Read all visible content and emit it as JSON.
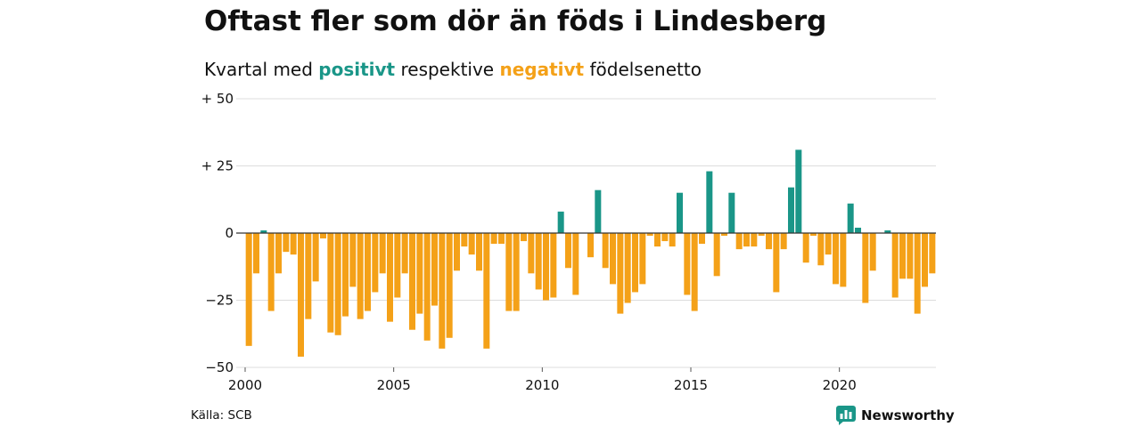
{
  "title": "Oftast fler som dör än föds i Lindesberg",
  "subtitle": {
    "prefix": "Kvartal med ",
    "positive_word": "positivt",
    "middle": " respektive ",
    "negative_word": "negativt",
    "suffix": " födelsenetto"
  },
  "colors": {
    "positive": "#1a9688",
    "negative": "#f4a118",
    "grid": "#dcdcdc",
    "zero": "#333333"
  },
  "source": "Källa: SCB",
  "brand": {
    "name": "Newsworthy",
    "icon": "newsworthy-logo-icon"
  },
  "chart_data": {
    "type": "bar",
    "title": "Oftast fler som dör än föds i Lindesberg",
    "ylim": [
      -50,
      50
    ],
    "yticks": [
      {
        "value": 50,
        "label": "+ 50"
      },
      {
        "value": 25,
        "label": "+ 25"
      },
      {
        "value": 0,
        "label": "0"
      },
      {
        "value": -25,
        "label": "−25"
      },
      {
        "value": -50,
        "label": "−50"
      }
    ],
    "xlim": [
      2000,
      2023.25
    ],
    "xticks": [
      2000,
      2005,
      2010,
      2015,
      2020
    ],
    "start_year": 2000,
    "period": "quarter",
    "values": [
      -42,
      -15,
      1,
      -29,
      -15,
      -7,
      -8,
      -46,
      -32,
      -18,
      -2,
      -37,
      -38,
      -31,
      -20,
      -32,
      -29,
      -22,
      -15,
      -33,
      -24,
      -15,
      -36,
      -30,
      -40,
      -27,
      -43,
      -39,
      -14,
      -5,
      -8,
      -14,
      -43,
      -4,
      -4,
      -29,
      -29,
      -3,
      -15,
      -21,
      -25,
      -24,
      8,
      -13,
      -23,
      0,
      -9,
      16,
      -13,
      -19,
      -30,
      -26,
      -22,
      -19,
      -1,
      -5,
      -3,
      -5,
      15,
      -23,
      -29,
      -4,
      23,
      -16,
      -1,
      15,
      -6,
      -5,
      -5,
      -1,
      -6,
      -22,
      -6,
      17,
      31,
      -11,
      -1,
      -12,
      -8,
      -19,
      -20,
      11,
      2,
      -26,
      -14,
      0,
      1,
      -24,
      -17,
      -17,
      -30,
      -20,
      -15
    ]
  }
}
